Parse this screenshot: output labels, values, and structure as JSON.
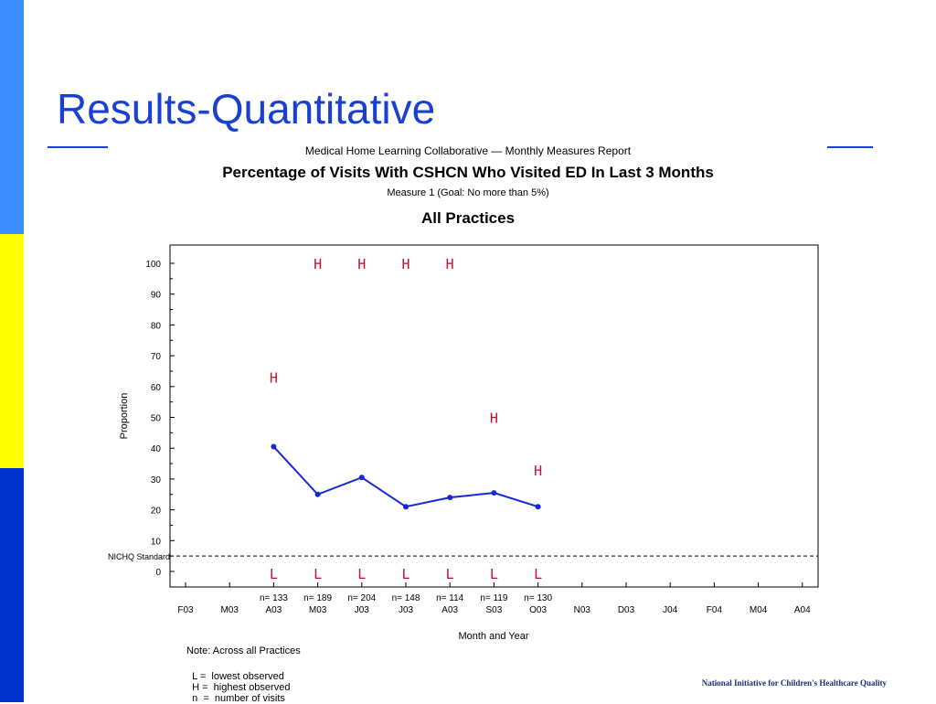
{
  "slide": {
    "title": "Results-Quantitative",
    "accent_color": "#1a3fd1",
    "sidebar_colors": [
      "#3a8cff",
      "#ffff00",
      "#0033cc"
    ]
  },
  "chart_header": {
    "report": "Medical Home Learning Collaborative — Monthly Measures Report",
    "title": "Percentage of Visits With CSHCN  Who Visited ED In Last 3 Months",
    "measure": "Measure 1   (Goal:   No more  than 5%)",
    "scope": "All Practices"
  },
  "notes": {
    "line1": "Note: Across all Practices",
    "legend": [
      "L =  lowest observed",
      "H =  highest observed",
      "n  =  number of visits"
    ]
  },
  "footer_brand": "National Initiative for Children's Healthcare Quality",
  "chart_data": {
    "type": "line",
    "xlabel": "Month and Year",
    "ylabel": "Proportion",
    "ylim": [
      0,
      100
    ],
    "yticks": [
      0,
      10,
      20,
      30,
      40,
      50,
      60,
      70,
      80,
      90,
      100
    ],
    "categories": [
      "F03",
      "M03",
      "A03",
      "M03",
      "J03",
      "J03",
      "A03",
      "S03",
      "O03",
      "N03",
      "D03",
      "J04",
      "F04",
      "M04",
      "A04"
    ],
    "series": [
      {
        "values": [
          null,
          null,
          40.5,
          25,
          30.5,
          21,
          24,
          25.5,
          21,
          null,
          null,
          null,
          null,
          null,
          null
        ]
      }
    ],
    "high_observed": [
      null,
      null,
      63,
      100,
      100,
      100,
      100,
      50,
      33,
      null,
      null,
      null,
      null,
      null,
      null
    ],
    "low_observed": [
      null,
      null,
      0,
      0,
      0,
      0,
      0,
      0,
      0,
      null,
      null,
      null,
      null,
      null,
      null
    ],
    "n_labels": [
      null,
      null,
      "n= 133",
      "n= 189",
      "n= 204",
      "n= 148",
      "n= 114",
      "n= 119",
      "n= 130",
      null,
      null,
      null,
      null,
      null,
      null
    ],
    "reference_line": {
      "label": "NICHQ Standard",
      "value": 5
    },
    "line_color": "#1428d8",
    "marker_color": "#c8102e",
    "grid": false
  }
}
